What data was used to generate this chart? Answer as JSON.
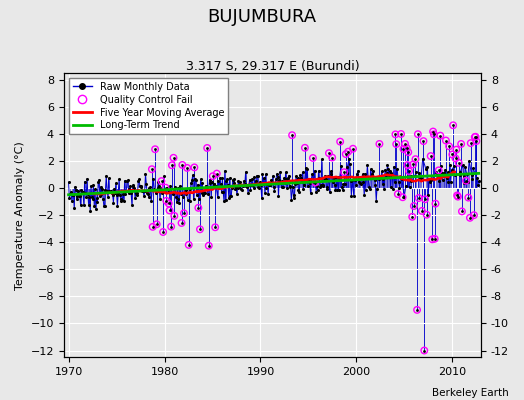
{
  "title": "BUJUMBURA",
  "subtitle": "3.317 S, 29.317 E (Burundi)",
  "ylabel": "Temperature Anomaly (°C)",
  "attribution": "Berkeley Earth",
  "xlim": [
    1969.5,
    2013
  ],
  "ylim": [
    -12.5,
    8.5
  ],
  "yticks": [
    -12,
    -10,
    -8,
    -6,
    -4,
    -2,
    0,
    2,
    4,
    6,
    8
  ],
  "xticks": [
    1970,
    1980,
    1990,
    2000,
    2010
  ],
  "bg_color": "#e8e8e8",
  "raw_color": "#0000cc",
  "qc_color": "#ff00ff",
  "moving_avg_color": "#ff0000",
  "trend_color": "#00bb00",
  "title_fontsize": 13,
  "subtitle_fontsize": 9,
  "axis_fontsize": 8
}
